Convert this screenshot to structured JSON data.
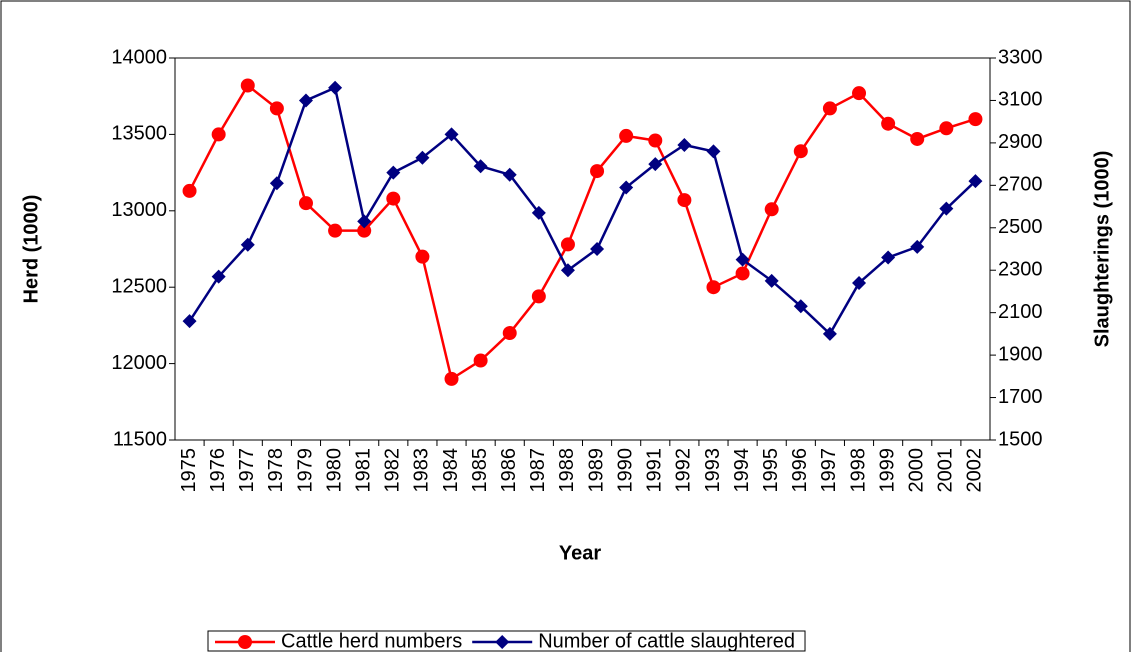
{
  "chart_data": {
    "type": "line",
    "x_label": "Year",
    "y_label": "Herd (1000)",
    "y2_label": "Slaughterings (1000)",
    "categories": [
      "1975",
      "1976",
      "1977",
      "1978",
      "1979",
      "1980",
      "1981",
      "1982",
      "1983",
      "1984",
      "1985",
      "1986",
      "1987",
      "1988",
      "1989",
      "1990",
      "1991",
      "1992",
      "1993",
      "1994",
      "1995",
      "1996",
      "1997",
      "1998",
      "1999",
      "2000",
      "2001",
      "2002"
    ],
    "series": [
      {
        "name": "Cattle herd numbers",
        "color": "#ff0000",
        "marker": "circle",
        "values": [
          13130,
          13500,
          13820,
          13670,
          13050,
          12870,
          12870,
          13080,
          12700,
          11900,
          12020,
          12200,
          12440,
          12780,
          13260,
          13490,
          13460,
          13070,
          12500,
          12590,
          13010,
          13390,
          13670,
          13770,
          13570,
          13470,
          13540,
          13600
        ]
      },
      {
        "name": "Number of cattle slaughtered",
        "color": "#000080",
        "marker": "diamond",
        "axis": "y2",
        "values": [
          2060,
          2270,
          2420,
          2710,
          3100,
          3160,
          2530,
          2760,
          2830,
          2940,
          2790,
          2750,
          2570,
          2300,
          2400,
          2690,
          2800,
          2890,
          2860,
          2350,
          2250,
          2130,
          2000,
          2240,
          2360,
          2410,
          2590,
          2720
        ]
      }
    ],
    "ylim": [
      11500,
      14000
    ],
    "yticks": [
      11500,
      12000,
      12500,
      13000,
      13500,
      14000
    ],
    "y2lim": [
      1500,
      3300
    ],
    "y2ticks": [
      1500,
      1700,
      1900,
      2100,
      2300,
      2500,
      2700,
      2900,
      3100,
      3300
    ],
    "grid": false,
    "legend": "bottom"
  }
}
